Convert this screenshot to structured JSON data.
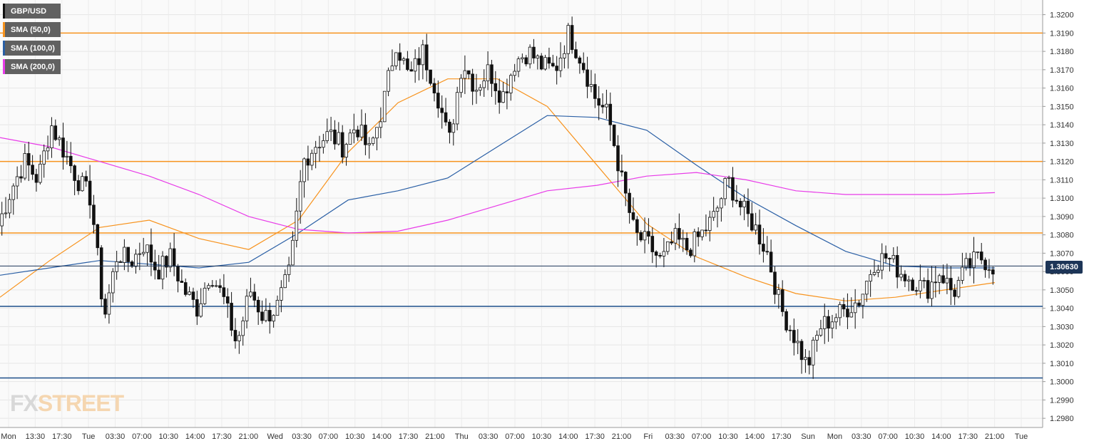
{
  "legend": [
    {
      "label": "GBP/USD",
      "color": "#111111"
    },
    {
      "label": "SMA (50,0)",
      "color": "#f7931e"
    },
    {
      "label": "SMA (100,0)",
      "color": "#2a5fa5"
    },
    {
      "label": "SMA (200,0)",
      "color": "#e83be8"
    }
  ],
  "current_price_label": "1.30630",
  "logo": {
    "part1": "FX",
    "part2": "STREET"
  },
  "chart_data": {
    "type": "candlestick",
    "title": "GBP/USD",
    "ylim": [
      1.2975,
      1.3208
    ],
    "y_ticks": [
      "1.2980",
      "1.2990",
      "1.3000",
      "1.3010",
      "1.3020",
      "1.3030",
      "1.3040",
      "1.3050",
      "1.3060",
      "1.3070",
      "1.3080",
      "1.3090",
      "1.3100",
      "1.3110",
      "1.3120",
      "1.3130",
      "1.3140",
      "1.3150",
      "1.3160",
      "1.3170",
      "1.3180",
      "1.3190",
      "1.3200"
    ],
    "x_ticks": [
      "Mon",
      "13:30",
      "17:30",
      "Tue",
      "03:30",
      "07:00",
      "10:30",
      "14:00",
      "17:30",
      "21:00",
      "Wed",
      "03:30",
      "07:00",
      "10:30",
      "14:00",
      "17:30",
      "21:00",
      "Thu",
      "03:30",
      "07:00",
      "10:30",
      "14:00",
      "17:30",
      "21:00",
      "Fri",
      "03:30",
      "07:00",
      "10:30",
      "14:00",
      "17:30",
      "Sun",
      "Mon",
      "03:30",
      "07:00",
      "10:30",
      "14:00",
      "17:30",
      "21:00",
      "Tue"
    ],
    "grid": true,
    "current_price": 1.3063,
    "horizontal_levels": [
      {
        "value": 1.319,
        "color": "#f7931e"
      },
      {
        "value": 1.312,
        "color": "#f7931e"
      },
      {
        "value": 1.3081,
        "color": "#f7931e"
      },
      {
        "value": 1.3041,
        "color": "#1d4e89"
      },
      {
        "value": 1.3002,
        "color": "#1d4e89"
      }
    ],
    "close_path": [
      1.3085,
      1.3105,
      1.312,
      1.311,
      1.314,
      1.3125,
      1.311,
      1.31,
      1.3035,
      1.307,
      1.3065,
      1.3075,
      1.306,
      1.3068,
      1.305,
      1.304,
      1.306,
      1.3045,
      1.302,
      1.305,
      1.3035,
      1.304,
      1.306,
      1.312,
      1.313,
      1.3135,
      1.3128,
      1.314,
      1.3125,
      1.315,
      1.3185,
      1.3165,
      1.318,
      1.316,
      1.313,
      1.3175,
      1.316,
      1.317,
      1.3155,
      1.3175,
      1.318,
      1.3172,
      1.317,
      1.319,
      1.3175,
      1.3155,
      1.3145,
      1.311,
      1.308,
      1.3075,
      1.3065,
      1.3078,
      1.3072,
      1.308,
      1.309,
      1.311,
      1.3095,
      1.3085,
      1.307,
      1.304,
      1.3025,
      1.3008,
      1.303,
      1.3035,
      1.304,
      1.3045,
      1.3065,
      1.3068,
      1.306,
      1.3055,
      1.305,
      1.306,
      1.3048,
      1.3062,
      1.3068,
      1.3063
    ],
    "series": [
      {
        "name": "SMA (50,0)",
        "color": "#f7931e",
        "x": [
          0,
          0.05,
          0.1,
          0.15,
          0.2,
          0.25,
          0.3,
          0.35,
          0.4,
          0.45,
          0.5,
          0.55,
          0.6,
          0.65,
          0.7,
          0.75,
          0.8,
          0.85,
          0.9,
          0.95,
          1
        ],
        "values": [
          1.3046,
          1.3066,
          1.3084,
          1.3088,
          1.3078,
          1.3072,
          1.3088,
          1.3125,
          1.3152,
          1.3165,
          1.3165,
          1.315,
          1.3118,
          1.3086,
          1.3068,
          1.3057,
          1.3048,
          1.3044,
          1.3046,
          1.305,
          1.3054
        ]
      },
      {
        "name": "SMA (100,0)",
        "color": "#2a5fa5",
        "x": [
          0,
          0.05,
          0.1,
          0.15,
          0.2,
          0.25,
          0.3,
          0.35,
          0.4,
          0.45,
          0.5,
          0.55,
          0.6,
          0.65,
          0.7,
          0.75,
          0.8,
          0.85,
          0.9,
          0.95,
          1
        ],
        "values": [
          1.3058,
          1.3062,
          1.3066,
          1.3064,
          1.3062,
          1.3065,
          1.3081,
          1.3099,
          1.3104,
          1.3111,
          1.3128,
          1.3145,
          1.3144,
          1.3137,
          1.3118,
          1.31,
          1.3085,
          1.3071,
          1.3063,
          1.3062,
          1.3062
        ]
      },
      {
        "name": "SMA (200,0)",
        "color": "#e83be8",
        "x": [
          0,
          0.05,
          0.1,
          0.15,
          0.2,
          0.25,
          0.3,
          0.35,
          0.4,
          0.45,
          0.5,
          0.55,
          0.6,
          0.65,
          0.7,
          0.75,
          0.8,
          0.85,
          0.9,
          0.95,
          1
        ],
        "values": [
          1.3133,
          1.3128,
          1.312,
          1.3112,
          1.3102,
          1.309,
          1.3083,
          1.3081,
          1.3082,
          1.3088,
          1.3096,
          1.3104,
          1.3107,
          1.3112,
          1.3114,
          1.311,
          1.3104,
          1.3102,
          1.3102,
          1.3102,
          1.3103
        ]
      }
    ]
  }
}
